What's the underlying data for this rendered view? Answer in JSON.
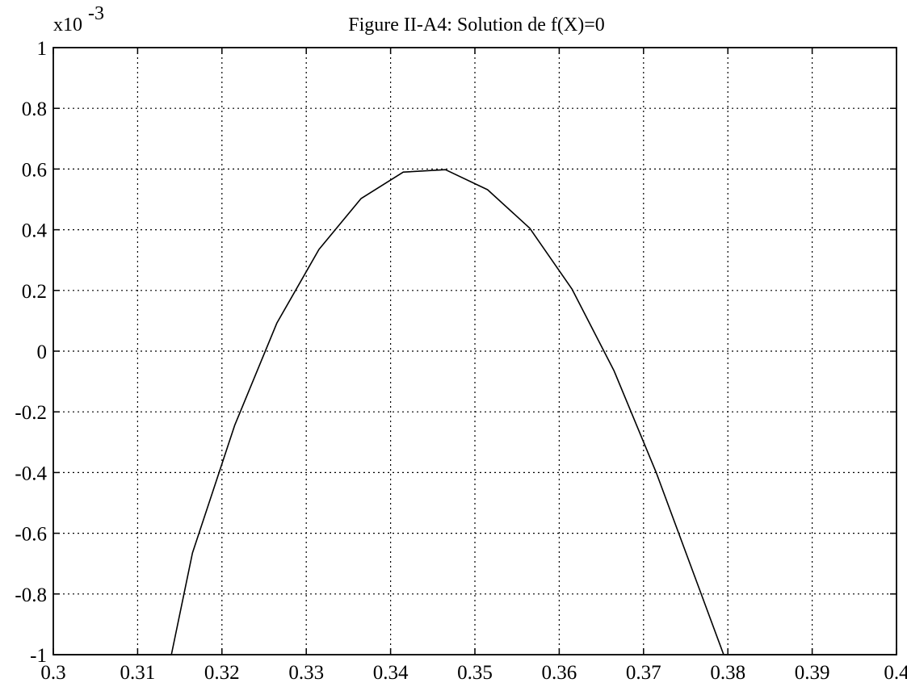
{
  "chart_data": {
    "type": "line",
    "title": "Figure II-A4: Solution de f(X)=0",
    "xlabel": "",
    "ylabel": "",
    "y_multiplier": {
      "base": "x10",
      "exponent": "-3"
    },
    "xlim": [
      0.3,
      0.4
    ],
    "ylim": [
      -1,
      1
    ],
    "xticks": [
      "0.3",
      "0.31",
      "0.32",
      "0.33",
      "0.34",
      "0.35",
      "0.36",
      "0.37",
      "0.38",
      "0.39",
      "0.4"
    ],
    "yticks": [
      "1",
      "0.8",
      "0.6",
      "0.4",
      "0.2",
      "0",
      "-0.2",
      "-0.4",
      "-0.6",
      "-0.8",
      "-1"
    ],
    "grid": true,
    "series": [
      {
        "color": "#000000",
        "x": [
          0.3,
          0.314,
          0.3165,
          0.3215,
          0.3265,
          0.3315,
          0.3365,
          0.3415,
          0.3465,
          0.3515,
          0.3565,
          0.3615,
          0.3665,
          0.3715,
          0.3765,
          0.3795,
          0.4
        ],
        "y": [
          -1.0,
          -1.0,
          -0.665,
          -0.245,
          0.092,
          0.335,
          0.503,
          0.59,
          0.598,
          0.532,
          0.405,
          0.205,
          -0.065,
          -0.4,
          -0.775,
          -1.0,
          -1.0
        ]
      }
    ]
  }
}
